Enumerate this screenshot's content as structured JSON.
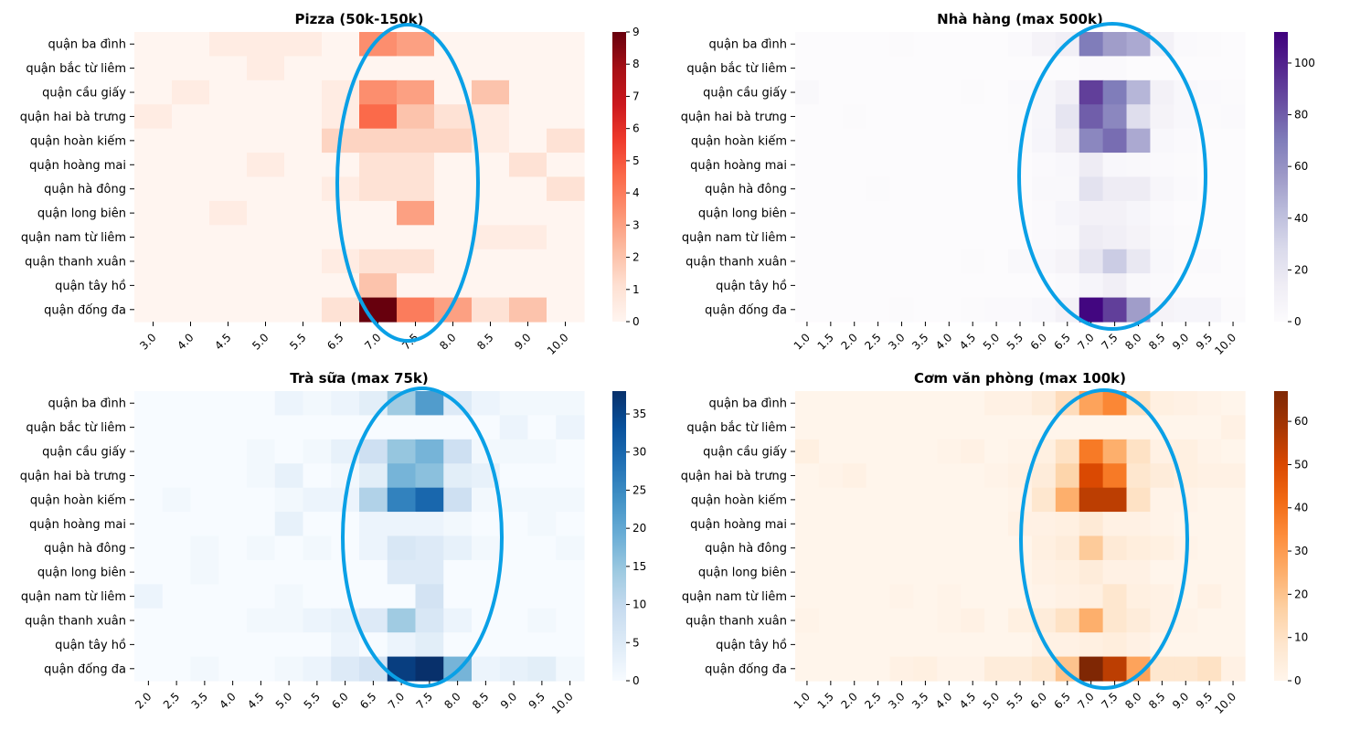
{
  "chart_data": [
    {
      "type": "heatmap",
      "title": "Pizza (50k-150k)",
      "rows": [
        "quận ba đình",
        "quận bắc từ liêm",
        "quận cầu giấy",
        "quận hai bà trưng",
        "quận hoàn kiếm",
        "quận hoàng mai",
        "quận hà đông",
        "quận long biên",
        "quận nam từ liêm",
        "quận thanh xuân",
        "quận tây hồ",
        "quận đống đa"
      ],
      "columns": [
        "3.0",
        "4.0",
        "4.5",
        "5.0",
        "5.5",
        "6.5",
        "7.0",
        "7.5",
        "8.0",
        "8.5",
        "9.0",
        "10.0"
      ],
      "values": [
        [
          0,
          0,
          0.5,
          0.5,
          0.5,
          0,
          3.5,
          3,
          0,
          0,
          0,
          0
        ],
        [
          0,
          0,
          0,
          0.5,
          0,
          0,
          0,
          0,
          0,
          0,
          0,
          0
        ],
        [
          0,
          0.5,
          0,
          0,
          0,
          0.5,
          3.5,
          3,
          0,
          2,
          0,
          0
        ],
        [
          0.5,
          0,
          0,
          0,
          0,
          0.5,
          4.5,
          2,
          1,
          0.5,
          0,
          0
        ],
        [
          0,
          0,
          0,
          0,
          0,
          1.5,
          1.5,
          1.5,
          1.5,
          0.5,
          0,
          1
        ],
        [
          0,
          0,
          0,
          0.5,
          0,
          0,
          1,
          1,
          0,
          0,
          1,
          0
        ],
        [
          0,
          0,
          0,
          0,
          0,
          0.5,
          1,
          1,
          0,
          0,
          0,
          1
        ],
        [
          0,
          0,
          0.5,
          0,
          0,
          0,
          0,
          3,
          0,
          0,
          0,
          0
        ],
        [
          0,
          0,
          0,
          0,
          0,
          0,
          0,
          0,
          0,
          0.5,
          0.5,
          0
        ],
        [
          0,
          0,
          0,
          0,
          0,
          0.5,
          1,
          1,
          0,
          0,
          0,
          0
        ],
        [
          0,
          0,
          0,
          0,
          0,
          0,
          2,
          0,
          0,
          0,
          0,
          0
        ],
        [
          0,
          0,
          0,
          0,
          0,
          1,
          9,
          4,
          3,
          1,
          2,
          0
        ]
      ],
      "colormap": "Reds",
      "vmin": 0,
      "vmax": 9,
      "colorbar_ticks": [
        "0",
        "1",
        "2",
        "3",
        "4",
        "5",
        "6",
        "7",
        "8",
        "9"
      ],
      "highlight_ellipse_color": "#0aa0e6"
    },
    {
      "type": "heatmap",
      "title": "Nhà hàng (max 500k)",
      "rows": [
        "quận ba đình",
        "quận bắc từ liêm",
        "quận cầu giấy",
        "quận hai bà trưng",
        "quận hoàn kiếm",
        "quận hoàng mai",
        "quận hà đông",
        "quận long biên",
        "quận nam từ liêm",
        "quận thanh xuân",
        "quận tây hồ",
        "quận đống đa"
      ],
      "columns": [
        "1.0",
        "1.5",
        "2.0",
        "2.5",
        "3.0",
        "3.5",
        "4.0",
        "4.5",
        "5.0",
        "5.5",
        "6.0",
        "6.5",
        "7.0",
        "7.5",
        "8.0",
        "8.5",
        "9.0",
        "9.5",
        "10.0"
      ],
      "values": [
        [
          0,
          0,
          0,
          0,
          1,
          0,
          0,
          0,
          0,
          2,
          8,
          12,
          70,
          55,
          50,
          10,
          2,
          1,
          0
        ],
        [
          0,
          0,
          0,
          0,
          0,
          0,
          0,
          0,
          0,
          0,
          0,
          0,
          2,
          2,
          0,
          0,
          0,
          0,
          0
        ],
        [
          3,
          0,
          0,
          0,
          0,
          0,
          0,
          1,
          0,
          2,
          5,
          12,
          90,
          70,
          45,
          10,
          4,
          2,
          1
        ],
        [
          0,
          0,
          1,
          0,
          0,
          0,
          0,
          0,
          0,
          1,
          5,
          20,
          80,
          65,
          25,
          8,
          4,
          1,
          2
        ],
        [
          0,
          0,
          0,
          0,
          0,
          0,
          0,
          0,
          0,
          1,
          6,
          15,
          65,
          75,
          50,
          4,
          2,
          0,
          0
        ],
        [
          0,
          0,
          0,
          0,
          0,
          0,
          0,
          0,
          0,
          0,
          2,
          4,
          15,
          4,
          3,
          2,
          1,
          0,
          0
        ],
        [
          0,
          0,
          0,
          1,
          0,
          0,
          0,
          0,
          0,
          0,
          3,
          3,
          22,
          15,
          15,
          5,
          2,
          0,
          0
        ],
        [
          0,
          0,
          0,
          0,
          0,
          0,
          0,
          0,
          0,
          0,
          2,
          6,
          10,
          10,
          6,
          2,
          0,
          0,
          0
        ],
        [
          0,
          0,
          0,
          0,
          0,
          0,
          0,
          0,
          0,
          0,
          2,
          3,
          15,
          12,
          8,
          3,
          1,
          0,
          0
        ],
        [
          0,
          0,
          0,
          0,
          0,
          0,
          0,
          1,
          0,
          3,
          4,
          8,
          20,
          35,
          18,
          4,
          1,
          2,
          0
        ],
        [
          0,
          0,
          0,
          0,
          0,
          0,
          0,
          0,
          0,
          0,
          0,
          2,
          6,
          12,
          3,
          2,
          0,
          0,
          0
        ],
        [
          0,
          0,
          0,
          0,
          1,
          0,
          0,
          1,
          2,
          2,
          4,
          10,
          110,
          90,
          55,
          8,
          6,
          6,
          1
        ]
      ],
      "colormap": "Purples",
      "vmin": 0,
      "vmax": 112,
      "colorbar_ticks": [
        "0",
        "20",
        "40",
        "60",
        "80",
        "100"
      ],
      "highlight_ellipse_color": "#0aa0e6"
    },
    {
      "type": "heatmap",
      "title": "Trà sữa (max 75k)",
      "rows": [
        "quận ba đình",
        "quận bắc từ liêm",
        "quận cầu giấy",
        "quận hai bà trưng",
        "quận hoàn kiếm",
        "quận hoàng mai",
        "quận hà đông",
        "quận long biên",
        "quận nam từ liêm",
        "quận thanh xuân",
        "quận tây hồ",
        "quận đống đa"
      ],
      "columns": [
        "2.0",
        "2.5",
        "3.5",
        "4.0",
        "4.5",
        "5.0",
        "5.5",
        "6.0",
        "6.5",
        "7.0",
        "7.5",
        "8.0",
        "8.5",
        "9.0",
        "9.5",
        "10.0"
      ],
      "values": [
        [
          0,
          0,
          0,
          0,
          0,
          2,
          1,
          2,
          4,
          14,
          22,
          5,
          2,
          1,
          1,
          1
        ],
        [
          0,
          0,
          0,
          0,
          0,
          0,
          0,
          0,
          0,
          0,
          0,
          0,
          0,
          2,
          0,
          2
        ],
        [
          0,
          0,
          0,
          0,
          1,
          0,
          1,
          3,
          8,
          15,
          18,
          8,
          1,
          1,
          1,
          0
        ],
        [
          0,
          0,
          0,
          0,
          1,
          3,
          0,
          1,
          4,
          18,
          16,
          4,
          3,
          0,
          0,
          0
        ],
        [
          0,
          1,
          0,
          0,
          0,
          1,
          2,
          2,
          12,
          26,
          30,
          8,
          1,
          1,
          1,
          1
        ],
        [
          0,
          0,
          0,
          0,
          0,
          3,
          0,
          0,
          2,
          2,
          2,
          1,
          0,
          0,
          1,
          0
        ],
        [
          0,
          0,
          1,
          0,
          1,
          0,
          1,
          0,
          2,
          6,
          5,
          3,
          1,
          0,
          0,
          1
        ],
        [
          0,
          0,
          1,
          0,
          0,
          0,
          0,
          0,
          0,
          5,
          5,
          0,
          0,
          0,
          0,
          0
        ],
        [
          2,
          0,
          0,
          0,
          0,
          1,
          0,
          0,
          0,
          0,
          7,
          0,
          0,
          0,
          0,
          0
        ],
        [
          0,
          0,
          0,
          0,
          1,
          1,
          2,
          3,
          5,
          14,
          6,
          2,
          0,
          0,
          1,
          0
        ],
        [
          0,
          0,
          0,
          0,
          0,
          0,
          0,
          2,
          0,
          2,
          4,
          0,
          0,
          0,
          0,
          0
        ],
        [
          0,
          0,
          1,
          0,
          0,
          1,
          2,
          5,
          7,
          36,
          38,
          18,
          2,
          3,
          4,
          1
        ]
      ],
      "colormap": "Blues",
      "vmin": 0,
      "vmax": 38,
      "colorbar_ticks": [
        "0",
        "5",
        "10",
        "15",
        "20",
        "25",
        "30",
        "35"
      ],
      "highlight_ellipse_color": "#0aa0e6"
    },
    {
      "type": "heatmap",
      "title": "Cơm văn phòng (max 100k)",
      "rows": [
        "quận ba đình",
        "quận bắc từ liêm",
        "quận cầu giấy",
        "quận hai bà trưng",
        "quận hoàn kiếm",
        "quận hoàng mai",
        "quận hà đông",
        "quận long biên",
        "quận nam từ liêm",
        "quận thanh xuân",
        "quận tây hồ",
        "quận đống đa"
      ],
      "columns": [
        "1.0",
        "1.5",
        "2.0",
        "2.5",
        "3.0",
        "3.5",
        "4.0",
        "4.5",
        "5.0",
        "5.5",
        "6.0",
        "6.5",
        "7.0",
        "7.5",
        "8.0",
        "8.5",
        "9.0",
        "9.5",
        "10.0"
      ],
      "values": [
        [
          0,
          0,
          0,
          0,
          0,
          0,
          0,
          0,
          2,
          2,
          5,
          12,
          28,
          35,
          10,
          3,
          2,
          1,
          0
        ],
        [
          0,
          0,
          0,
          0,
          0,
          0,
          0,
          0,
          0,
          0,
          0,
          0,
          0,
          0,
          0,
          0,
          0,
          0,
          2
        ],
        [
          3,
          0,
          0,
          0,
          0,
          0,
          1,
          2,
          0,
          1,
          3,
          10,
          38,
          25,
          10,
          2,
          3,
          1,
          0
        ],
        [
          0,
          1,
          2,
          0,
          0,
          0,
          0,
          0,
          1,
          2,
          5,
          15,
          50,
          38,
          8,
          5,
          3,
          2,
          2
        ],
        [
          0,
          0,
          0,
          0,
          0,
          0,
          0,
          0,
          0,
          1,
          8,
          25,
          55,
          55,
          10,
          1,
          1,
          0,
          0
        ],
        [
          0,
          0,
          0,
          0,
          0,
          0,
          0,
          0,
          0,
          2,
          2,
          3,
          6,
          2,
          2,
          1,
          0,
          0,
          0
        ],
        [
          0,
          0,
          0,
          0,
          0,
          0,
          0,
          0,
          0,
          0,
          3,
          5,
          18,
          6,
          4,
          3,
          1,
          0,
          0
        ],
        [
          0,
          0,
          0,
          0,
          0,
          0,
          0,
          0,
          0,
          0,
          2,
          3,
          5,
          2,
          2,
          0,
          0,
          0,
          0
        ],
        [
          0,
          0,
          0,
          0,
          1,
          0,
          1,
          0,
          0,
          0,
          1,
          2,
          3,
          8,
          3,
          2,
          0,
          2,
          0
        ],
        [
          1,
          0,
          0,
          0,
          0,
          0,
          1,
          2,
          0,
          3,
          5,
          10,
          25,
          8,
          5,
          2,
          1,
          0,
          0
        ],
        [
          0,
          0,
          0,
          0,
          0,
          0,
          0,
          0,
          0,
          0,
          2,
          2,
          3,
          4,
          2,
          0,
          0,
          0,
          0
        ],
        [
          0,
          0,
          0,
          0,
          2,
          3,
          1,
          1,
          5,
          5,
          8,
          20,
          67,
          55,
          28,
          8,
          8,
          10,
          2
        ]
      ],
      "colormap": "Oranges",
      "vmin": 0,
      "vmax": 67,
      "colorbar_ticks": [
        "0",
        "10",
        "20",
        "30",
        "40",
        "50",
        "60"
      ],
      "highlight_ellipse_color": "#0aa0e6"
    }
  ]
}
